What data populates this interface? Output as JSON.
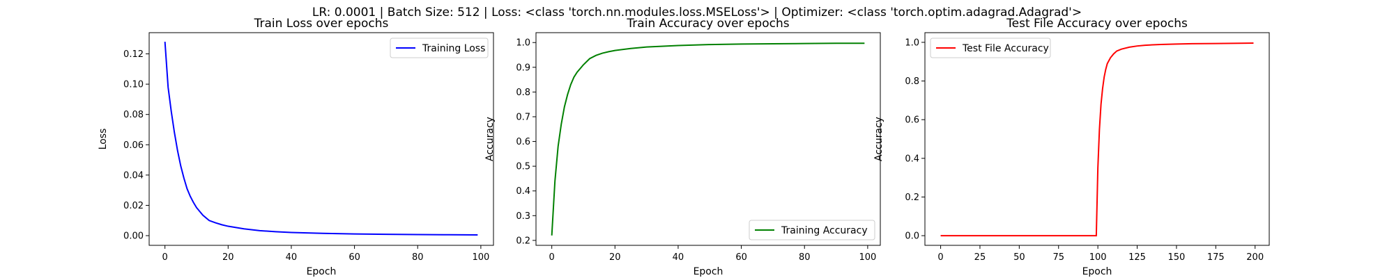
{
  "figure": {
    "suptitle": "LR: 0.0001 | Batch Size: 512 | Loss: <class 'torch.nn.modules.loss.MSELoss'> | Optimizer: <class 'torch.optim.adagrad.Adagrad'>"
  },
  "chart_data": [
    {
      "type": "line",
      "title": "Train Loss over epochs",
      "xlabel": "Epoch",
      "ylabel": "Loss",
      "xlim": [
        -5,
        104
      ],
      "ylim": [
        -0.0064,
        0.134
      ],
      "xticks": [
        0,
        20,
        40,
        60,
        80,
        100
      ],
      "yticks": [
        0.0,
        0.02,
        0.04,
        0.06,
        0.08,
        0.1,
        0.12
      ],
      "ytick_decimals": 2,
      "legend": "top-right",
      "grid": false,
      "series": [
        {
          "name": "Training Loss",
          "color": "#0000ff",
          "x": [
            0,
            1,
            2,
            3,
            4,
            5,
            6,
            7,
            8,
            9,
            10,
            12,
            14,
            16,
            18,
            20,
            25,
            30,
            35,
            40,
            50,
            60,
            70,
            80,
            90,
            99
          ],
          "y": [
            0.128,
            0.098,
            0.082,
            0.068,
            0.056,
            0.046,
            0.038,
            0.031,
            0.026,
            0.022,
            0.0185,
            0.0135,
            0.01,
            0.0085,
            0.0072,
            0.0062,
            0.0045,
            0.0033,
            0.0026,
            0.0021,
            0.0015,
            0.0011,
            0.0009,
            0.0007,
            0.0006,
            0.0005
          ]
        }
      ]
    },
    {
      "type": "line",
      "title": "Train Accuracy over epochs",
      "xlabel": "Epoch",
      "ylabel": "Accuracy",
      "xlim": [
        -5,
        104
      ],
      "ylim": [
        0.18,
        1.04
      ],
      "xticks": [
        0,
        20,
        40,
        60,
        80,
        100
      ],
      "yticks": [
        0.2,
        0.3,
        0.4,
        0.5,
        0.6,
        0.7,
        0.8,
        0.9,
        1.0
      ],
      "ytick_decimals": 1,
      "legend": "bottom-right",
      "grid": false,
      "series": [
        {
          "name": "Training Accuracy",
          "color": "#008000",
          "x": [
            0,
            1,
            2,
            3,
            4,
            5,
            6,
            7,
            8,
            10,
            12,
            14,
            16,
            18,
            20,
            25,
            30,
            40,
            50,
            60,
            70,
            80,
            90,
            99
          ],
          "y": [
            0.22,
            0.44,
            0.58,
            0.67,
            0.74,
            0.79,
            0.83,
            0.86,
            0.88,
            0.91,
            0.935,
            0.948,
            0.957,
            0.963,
            0.968,
            0.976,
            0.982,
            0.988,
            0.992,
            0.994,
            0.995,
            0.996,
            0.997,
            0.997
          ]
        }
      ]
    },
    {
      "type": "line",
      "title": "Test File Accuracy over epochs",
      "xlabel": "Epoch",
      "ylabel": "Accuracy",
      "xlim": [
        -10,
        209
      ],
      "ylim": [
        -0.05,
        1.05
      ],
      "xticks": [
        0,
        25,
        50,
        75,
        100,
        125,
        150,
        175,
        200
      ],
      "yticks": [
        0.0,
        0.2,
        0.4,
        0.6,
        0.8,
        1.0
      ],
      "ytick_decimals": 1,
      "legend": "top-left",
      "grid": false,
      "series": [
        {
          "name": "Test File Accuracy",
          "color": "#ff0000",
          "x": [
            0,
            25,
            50,
            75,
            99,
            100,
            101,
            102,
            103,
            104,
            105,
            106,
            108,
            110,
            112,
            115,
            120,
            125,
            130,
            140,
            150,
            160,
            175,
            190,
            199
          ],
          "y": [
            0.0,
            0.0,
            0.0,
            0.0,
            0.0,
            0.35,
            0.55,
            0.68,
            0.76,
            0.82,
            0.86,
            0.89,
            0.92,
            0.94,
            0.955,
            0.965,
            0.975,
            0.981,
            0.985,
            0.989,
            0.991,
            0.993,
            0.994,
            0.995,
            0.996
          ]
        }
      ]
    }
  ]
}
